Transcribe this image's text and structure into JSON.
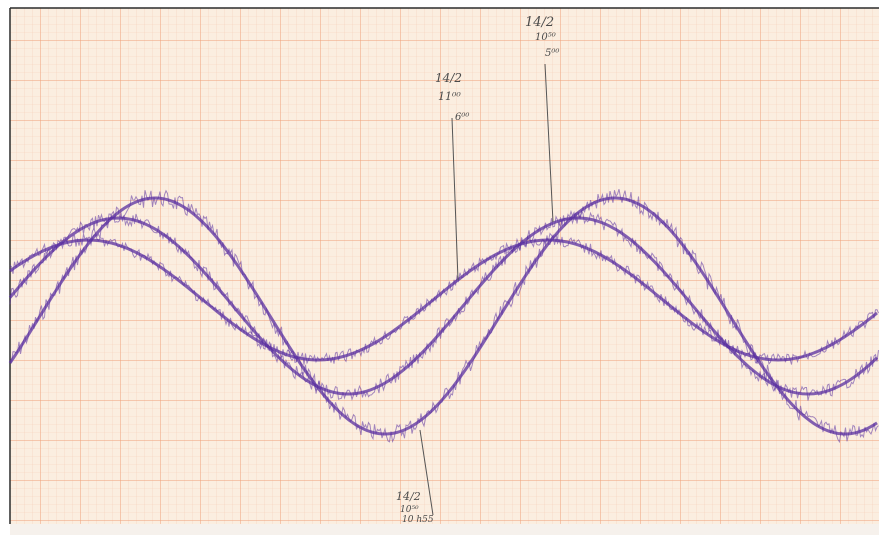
{
  "image": {
    "subject": "chart recorder paper strip with three overlaid noisy purple sine traces and handwritten pencil annotations",
    "colors": {
      "paper": "#fbeee0",
      "grid_fine": "#f4c9ad",
      "grid_major": "#ee9f78",
      "ink": "#5a2fa0",
      "pencil": "#5a5a5a"
    }
  },
  "annotations": {
    "mid": [
      "14/2",
      "11⁰⁰",
      "6⁰⁰"
    ],
    "top": [
      "14/2",
      "10⁵⁰",
      "5⁰⁰"
    ],
    "bottom": [
      "14/2",
      "10⁵⁰",
      "10 h55"
    ]
  }
}
